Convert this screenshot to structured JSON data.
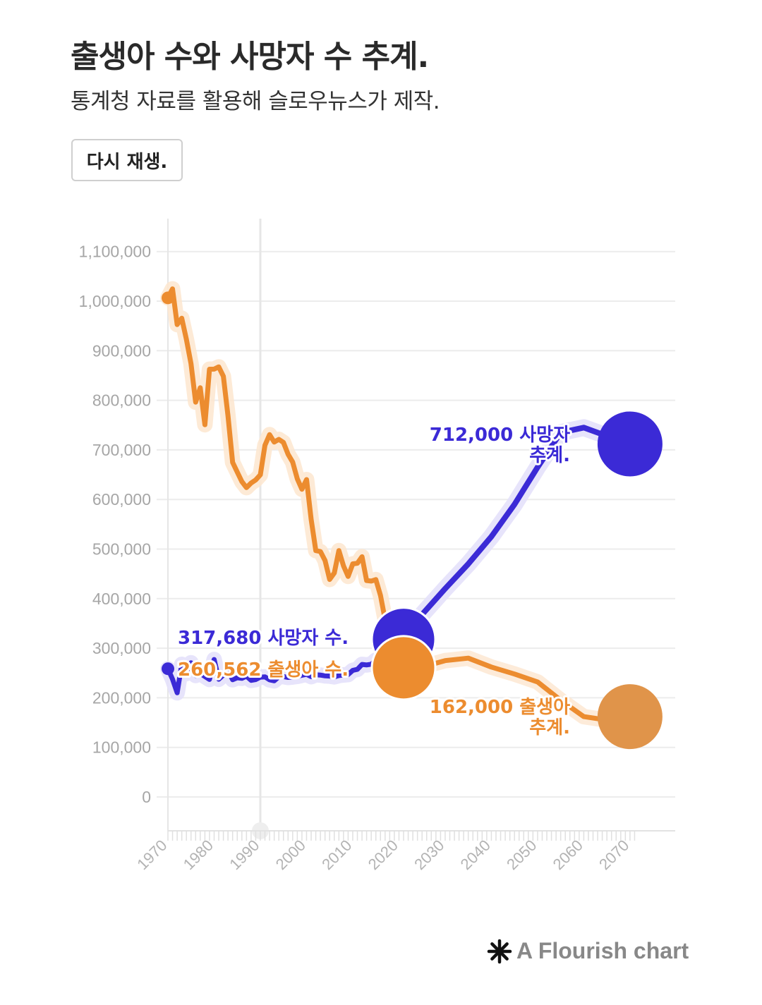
{
  "header": {
    "title": "출생아 수와 사망자 수 추계.",
    "subtitle": "통계청 자료를 활용해 슬로우뉴스가 제작.",
    "replay_label": "다시 재생."
  },
  "footer": {
    "label": "A Flourish chart",
    "icon": "flourish-asterisk-icon"
  },
  "chart_data": {
    "type": "line",
    "title": "출생아 수와 사망자 수 추계.",
    "xlim": [
      1970,
      2072
    ],
    "ylim": [
      -70000,
      1100000
    ],
    "x_ticks": [
      1970,
      1980,
      1990,
      2000,
      2010,
      2020,
      2030,
      2040,
      2050,
      2060,
      2070
    ],
    "y_ticks": [
      0,
      100000,
      200000,
      300000,
      400000,
      500000,
      600000,
      700000,
      800000,
      900000,
      1000000,
      1100000
    ],
    "y_tick_labels": [
      "0",
      "100,000",
      "200,000",
      "300,000",
      "400,000",
      "500,000",
      "600,000",
      "700,000",
      "800,000",
      "900,000",
      "1,000,000",
      "1,100,000"
    ],
    "highlight_year": 1990,
    "colors": {
      "births": "#ec8c2f",
      "deaths": "#3b2ad6",
      "births_projection_dot": "#e0944a"
    },
    "series": [
      {
        "key": "births",
        "points": [
          [
            1970,
            1006645
          ],
          [
            1971,
            1024773
          ],
          [
            1972,
            952780
          ],
          [
            1973,
            965521
          ],
          [
            1974,
            922823
          ],
          [
            1975,
            874030
          ],
          [
            1976,
            796331
          ],
          [
            1977,
            825339
          ],
          [
            1978,
            750728
          ],
          [
            1979,
            862669
          ],
          [
            1980,
            862835
          ],
          [
            1981,
            867409
          ],
          [
            1982,
            848312
          ],
          [
            1983,
            769155
          ],
          [
            1984,
            674793
          ],
          [
            1985,
            655489
          ],
          [
            1986,
            636019
          ],
          [
            1987,
            623831
          ],
          [
            1988,
            633092
          ],
          [
            1989,
            639431
          ],
          [
            1990,
            649738
          ],
          [
            1991,
            709275
          ],
          [
            1992,
            730678
          ],
          [
            1993,
            715826
          ],
          [
            1994,
            721185
          ],
          [
            1995,
            715020
          ],
          [
            1996,
            691226
          ],
          [
            1997,
            675394
          ],
          [
            1998,
            641594
          ],
          [
            1999,
            620668
          ],
          [
            2000,
            640089
          ],
          [
            2001,
            559934
          ],
          [
            2002,
            496911
          ],
          [
            2003,
            495036
          ],
          [
            2004,
            476958
          ],
          [
            2005,
            438707
          ],
          [
            2006,
            451759
          ],
          [
            2007,
            496822
          ],
          [
            2008,
            465892
          ],
          [
            2009,
            444849
          ],
          [
            2010,
            470171
          ],
          [
            2011,
            471265
          ],
          [
            2012,
            484550
          ],
          [
            2013,
            436455
          ],
          [
            2014,
            435435
          ],
          [
            2015,
            438420
          ],
          [
            2016,
            406243
          ],
          [
            2017,
            357771
          ],
          [
            2018,
            326822
          ],
          [
            2019,
            302676
          ],
          [
            2020,
            272337
          ],
          [
            2021,
            260562
          ]
        ],
        "projection": [
          [
            2021,
            260562
          ],
          [
            2025,
            262000
          ],
          [
            2030,
            275000
          ],
          [
            2035,
            280000
          ],
          [
            2040,
            262000
          ],
          [
            2045,
            248000
          ],
          [
            2050,
            232000
          ],
          [
            2055,
            195000
          ],
          [
            2060,
            162000
          ],
          [
            2065,
            155000
          ],
          [
            2070,
            162000
          ]
        ],
        "current_label": "260,562 출생아 수.",
        "projection_label_line1": "162,000 출생아",
        "projection_label_line2": "추계."
      },
      {
        "key": "deaths",
        "points": [
          [
            1970,
            258589
          ],
          [
            1971,
            237528
          ],
          [
            1972,
            210071
          ],
          [
            1973,
            267460
          ],
          [
            1974,
            248807
          ],
          [
            1975,
            270657
          ],
          [
            1976,
            245000
          ],
          [
            1977,
            249254
          ],
          [
            1978,
            243000
          ],
          [
            1979,
            237000
          ],
          [
            1980,
            277284
          ],
          [
            1981,
            237481
          ],
          [
            1982,
            245767
          ],
          [
            1983,
            254563
          ],
          [
            1984,
            236445
          ],
          [
            1985,
            240418
          ],
          [
            1986,
            239256
          ],
          [
            1987,
            243504
          ],
          [
            1988,
            235142
          ],
          [
            1989,
            236818
          ],
          [
            1990,
            241616
          ],
          [
            1991,
            242270
          ],
          [
            1992,
            236162
          ],
          [
            1993,
            234257
          ],
          [
            1994,
            242439
          ],
          [
            1995,
            242838
          ],
          [
            1996,
            241149
          ],
          [
            1997,
            241943
          ],
          [
            1998,
            243193
          ],
          [
            1999,
            245364
          ],
          [
            2000,
            247346
          ],
          [
            2001,
            242730
          ],
          [
            2002,
            246515
          ],
          [
            2003,
            245817
          ],
          [
            2004,
            244217
          ],
          [
            2005,
            243883
          ],
          [
            2006,
            242266
          ],
          [
            2007,
            244874
          ],
          [
            2008,
            246113
          ],
          [
            2009,
            246942
          ],
          [
            2010,
            255405
          ],
          [
            2011,
            257396
          ],
          [
            2012,
            267221
          ],
          [
            2013,
            266257
          ],
          [
            2014,
            267692
          ],
          [
            2015,
            275895
          ],
          [
            2016,
            280827
          ],
          [
            2017,
            285534
          ],
          [
            2018,
            298820
          ],
          [
            2019,
            295110
          ],
          [
            2020,
            304948
          ],
          [
            2021,
            317680
          ]
        ],
        "projection": [
          [
            2021,
            317680
          ],
          [
            2025,
            368000
          ],
          [
            2030,
            420000
          ],
          [
            2035,
            470000
          ],
          [
            2040,
            525000
          ],
          [
            2045,
            590000
          ],
          [
            2050,
            665000
          ],
          [
            2055,
            735000
          ],
          [
            2060,
            745000
          ],
          [
            2065,
            728000
          ],
          [
            2070,
            712000
          ]
        ],
        "current_label": "317,680 사망자 수.",
        "projection_label_line1": "712,000 사망자",
        "projection_label_line2": "추계."
      }
    ]
  }
}
